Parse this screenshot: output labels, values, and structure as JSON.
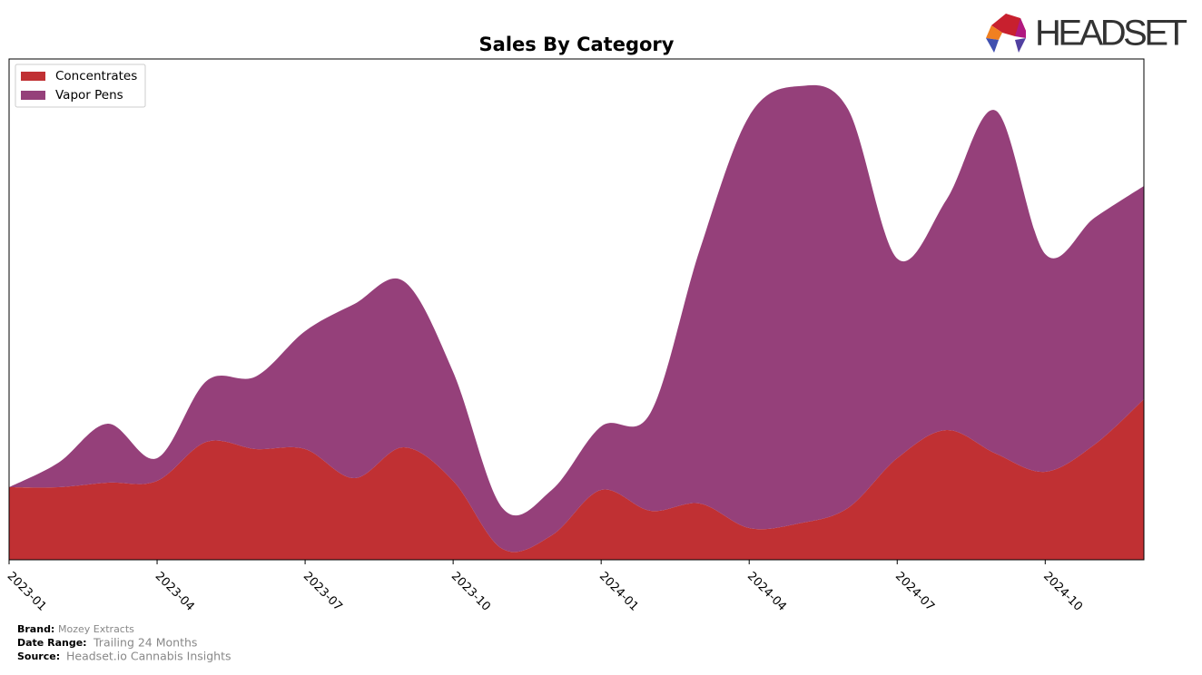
{
  "chart_data": {
    "type": "stacked-area",
    "title": "Sales By Category",
    "x": [
      "2023-01",
      "2023-02",
      "2023-03",
      "2023-04",
      "2023-05",
      "2023-06",
      "2023-07",
      "2023-08",
      "2023-09",
      "2023-10",
      "2023-11",
      "2023-12",
      "2024-01",
      "2024-02",
      "2024-03",
      "2024-04",
      "2024-05",
      "2024-06",
      "2024-07",
      "2024-08",
      "2024-09",
      "2024-10",
      "2024-11",
      "2024-12"
    ],
    "xticks": [
      "2023-01",
      "2023-04",
      "2023-07",
      "2023-10",
      "2024-01",
      "2024-04",
      "2024-07",
      "2024-10"
    ],
    "ylim": [
      0,
      552
    ],
    "legend": "upper left",
    "series": [
      {
        "name": "Concentrates",
        "color": "#c03033",
        "values": [
          80,
          80,
          85,
          87,
          130,
          122,
          122,
          90,
          124,
          87,
          12,
          27,
          77,
          54,
          62,
          35,
          40,
          57,
          112,
          143,
          117,
          97,
          127,
          177
        ]
      },
      {
        "name": "Vapor Pens",
        "color": "#95407a",
        "values": [
          0,
          27,
          65,
          25,
          67,
          80,
          130,
          192,
          183,
          120,
          45,
          50,
          70,
          108,
          280,
          454,
          482,
          440,
          220,
          254,
          378,
          240,
          250,
          235
        ]
      }
    ]
  },
  "logo": "HEADSET",
  "footer": {
    "brand_label": "Brand:",
    "brand": "Mozey Extracts",
    "range_label": "Date Range:",
    "range": "Trailing 24 Months",
    "source_label": "Source:",
    "source": "Headset.io Cannabis Insights"
  }
}
